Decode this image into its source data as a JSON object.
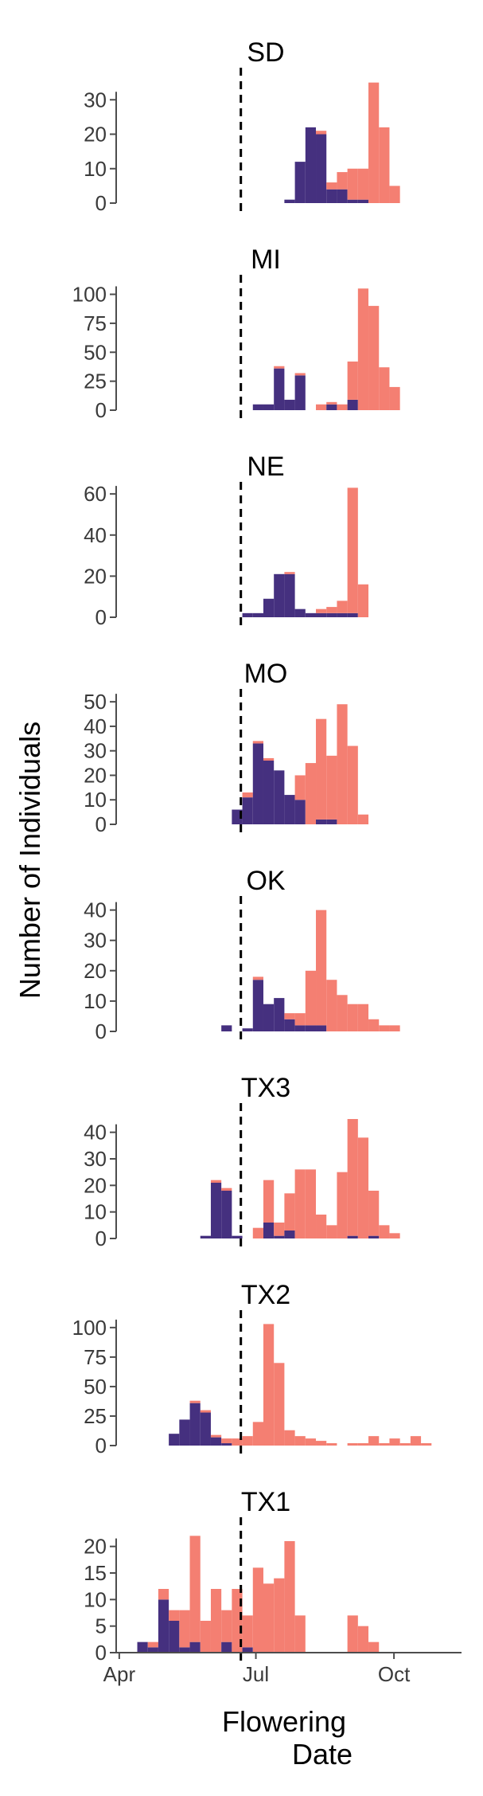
{
  "colors": {
    "early": "#45307f",
    "late": "#f47f72",
    "axis": "#4d4d4d",
    "cutoff_line": "#000000"
  },
  "labels": {
    "ylabel": "Number of Individuals",
    "xlabel_line1": "Flowering",
    "xlabel_line2": "Date"
  },
  "chart_data": {
    "type": "histogram",
    "x_unit": "day of year",
    "x_domain": [
      90,
      319
    ],
    "x_ticks": [
      {
        "label": "Apr",
        "value": 91
      },
      {
        "label": "Jul",
        "value": 182
      },
      {
        "label": "Oct",
        "value": 274
      }
    ],
    "cutoff_line_x": 172,
    "bin_width": 7,
    "bins_start": [
      103,
      110,
      117,
      124,
      131,
      138,
      145,
      152,
      159,
      166,
      173,
      180,
      187,
      194,
      201,
      208,
      215,
      222,
      229,
      236,
      243,
      250,
      257,
      264,
      271,
      278,
      285,
      292,
      299,
      306
    ],
    "ylabel": "Number of Individuals",
    "xlabel": "Flowering Date",
    "panels": [
      {
        "title": "SD",
        "ylim": [
          0,
          37
        ],
        "yticks": [
          0,
          10,
          20,
          30
        ],
        "early": [
          0,
          0,
          0,
          0,
          0,
          0,
          0,
          0,
          0,
          0,
          0,
          0,
          0,
          0,
          1,
          12,
          22,
          20,
          4,
          4,
          1,
          1,
          0,
          0,
          0,
          0,
          0,
          0,
          0,
          0
        ],
        "late": [
          0,
          0,
          0,
          0,
          0,
          0,
          0,
          0,
          0,
          0,
          0,
          0,
          0,
          0,
          0,
          0,
          0,
          1,
          2,
          5,
          9,
          9,
          35,
          22,
          5,
          0,
          0,
          0,
          0,
          0
        ]
      },
      {
        "title": "MI",
        "ylim": [
          0,
          110
        ],
        "yticks": [
          0,
          25,
          50,
          75,
          100
        ],
        "early": [
          0,
          0,
          0,
          0,
          0,
          0,
          0,
          0,
          0,
          0,
          0,
          5,
          5,
          36,
          9,
          30,
          0,
          0,
          5,
          0,
          9,
          0,
          0,
          0,
          0,
          0,
          0,
          0,
          0,
          0
        ],
        "late": [
          0,
          0,
          0,
          0,
          0,
          0,
          0,
          0,
          0,
          0,
          0,
          0,
          0,
          2,
          0,
          2,
          0,
          5,
          2,
          5,
          33,
          105,
          90,
          37,
          20,
          0,
          0,
          0,
          0,
          0
        ]
      },
      {
        "title": "NE",
        "ylim": [
          0,
          62
        ],
        "yticks": [
          0,
          20,
          40,
          60
        ],
        "early": [
          0,
          0,
          0,
          0,
          0,
          0,
          0,
          0,
          0,
          0,
          2,
          2,
          9,
          21,
          21,
          4,
          2,
          2,
          2,
          2,
          2,
          0,
          0,
          0,
          0,
          0,
          0,
          0,
          0,
          0
        ],
        "late": [
          0,
          0,
          0,
          0,
          0,
          0,
          0,
          0,
          0,
          0,
          0,
          0,
          0,
          0,
          1,
          0,
          0,
          2,
          3,
          6,
          61,
          16,
          0,
          0,
          0,
          0,
          0,
          0,
          0,
          0
        ]
      },
      {
        "title": "MO",
        "ylim": [
          0,
          52
        ],
        "yticks": [
          0,
          10,
          20,
          30,
          40,
          50
        ],
        "early": [
          0,
          0,
          0,
          0,
          0,
          0,
          0,
          0,
          0,
          6,
          11,
          33,
          26,
          22,
          12,
          10,
          0,
          2,
          2,
          0,
          0,
          0,
          0,
          0,
          0,
          0,
          0,
          0,
          0,
          0
        ],
        "late": [
          0,
          0,
          0,
          0,
          0,
          0,
          0,
          0,
          0,
          0,
          2,
          1,
          1,
          0,
          0,
          10,
          25,
          41,
          26,
          49,
          32,
          4,
          0,
          0,
          0,
          0,
          0,
          0,
          0,
          0
        ]
      },
      {
        "title": "OK",
        "ylim": [
          0,
          42
        ],
        "yticks": [
          0,
          10,
          20,
          30,
          40
        ],
        "early": [
          0,
          0,
          0,
          0,
          0,
          0,
          0,
          0,
          2,
          0,
          1,
          17,
          9,
          11,
          4,
          2,
          2,
          2,
          0,
          0,
          0,
          0,
          0,
          0,
          0,
          0,
          0,
          0,
          0,
          0
        ],
        "late": [
          0,
          0,
          0,
          0,
          0,
          0,
          0,
          0,
          0,
          0,
          0,
          1,
          0,
          0,
          2,
          4,
          18,
          38,
          17,
          12,
          9,
          9,
          4,
          2,
          2,
          0,
          0,
          0,
          0,
          0
        ]
      },
      {
        "title": "TX3",
        "ylim": [
          0,
          48
        ],
        "yticks": [
          0,
          10,
          20,
          30,
          40
        ],
        "early": [
          0,
          0,
          0,
          0,
          0,
          0,
          1,
          21,
          18,
          1,
          0,
          0,
          6,
          1,
          3,
          0,
          0,
          0,
          0,
          0,
          1,
          0,
          1,
          0,
          0,
          0,
          0,
          0,
          0,
          0
        ],
        "late": [
          0,
          0,
          0,
          0,
          0,
          0,
          0,
          1,
          1,
          0,
          0,
          4,
          16,
          5,
          14,
          26,
          26,
          9,
          5,
          25,
          44,
          38,
          17,
          5,
          2,
          0,
          0,
          0,
          0,
          0
        ]
      },
      {
        "title": "TX2",
        "ylim": [
          0,
          108
        ],
        "yticks": [
          0,
          25,
          50,
          75,
          100
        ],
        "early": [
          0,
          0,
          0,
          10,
          22,
          36,
          28,
          7,
          2,
          0,
          0,
          0,
          0,
          0,
          0,
          0,
          0,
          0,
          0,
          0,
          0,
          0,
          0,
          0,
          0,
          0,
          0,
          0,
          0,
          0
        ],
        "late": [
          0,
          0,
          0,
          0,
          0,
          2,
          2,
          2,
          4,
          6,
          8,
          20,
          103,
          70,
          13,
          8,
          6,
          4,
          2,
          0,
          2,
          2,
          8,
          2,
          6,
          2,
          8,
          2,
          0,
          0
        ]
      },
      {
        "title": "TX1",
        "ylim": [
          0,
          24
        ],
        "yticks": [
          0,
          5,
          10,
          15,
          20
        ],
        "early": [
          2,
          1,
          10,
          6,
          1,
          2,
          0,
          0,
          2,
          0,
          1,
          0,
          0,
          0,
          0,
          0,
          0,
          0,
          0,
          0,
          0,
          0,
          0,
          0,
          0,
          0,
          0,
          0,
          0,
          0
        ],
        "late": [
          0,
          1,
          2,
          2,
          7,
          20,
          6,
          12,
          6,
          12,
          6,
          16,
          13,
          14,
          21,
          7,
          0,
          0,
          0,
          0,
          7,
          5,
          2,
          0,
          0,
          0,
          0,
          0,
          0,
          0
        ]
      }
    ]
  }
}
